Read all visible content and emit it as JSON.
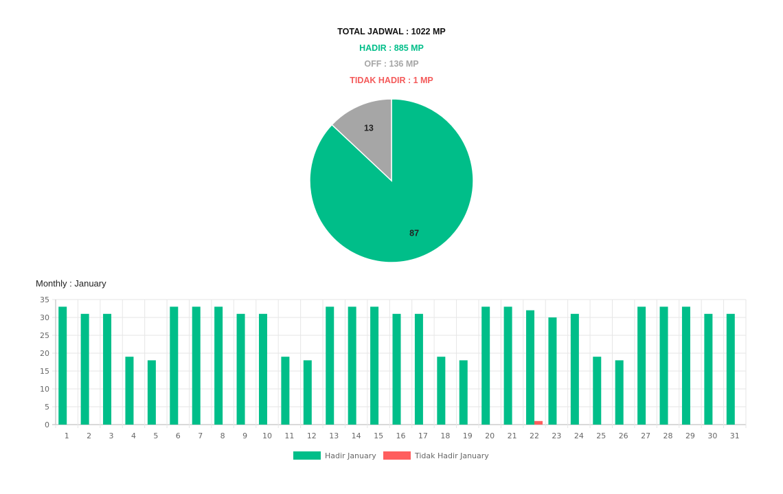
{
  "summary": {
    "total": "TOTAL JADWAL : 1022 MP",
    "hadir": "HADIR : 885 MP",
    "off": "OFF : 136 MP",
    "tidak_hadir": "TIDAK HADIR : 1 MP"
  },
  "monthly_title": "Monthly : January",
  "colors": {
    "hadir": "#00be89",
    "off": "#a6a6a6",
    "tidak_hadir": "#ff5e5e",
    "grid": "#e6e6e6"
  },
  "chart_data": [
    {
      "type": "pie",
      "slices": [
        {
          "label": "87",
          "value": 87,
          "color": "#00be89"
        },
        {
          "label": "13",
          "value": 13,
          "color": "#a6a6a6"
        }
      ]
    },
    {
      "type": "bar",
      "title": "Monthly : January",
      "categories": [
        "1",
        "2",
        "3",
        "4",
        "5",
        "6",
        "7",
        "8",
        "9",
        "10",
        "11",
        "12",
        "13",
        "14",
        "15",
        "16",
        "17",
        "18",
        "19",
        "20",
        "21",
        "22",
        "23",
        "24",
        "25",
        "26",
        "27",
        "28",
        "29",
        "30",
        "31"
      ],
      "series": [
        {
          "name": "Hadir January",
          "color": "#00be89",
          "values": [
            33,
            31,
            31,
            19,
            18,
            33,
            33,
            33,
            31,
            31,
            19,
            18,
            33,
            33,
            33,
            31,
            31,
            19,
            18,
            33,
            33,
            32,
            30,
            31,
            19,
            18,
            33,
            33,
            33,
            31,
            31
          ]
        },
        {
          "name": "Tidak Hadir January",
          "color": "#ff5e5e",
          "values": [
            0,
            0,
            0,
            0,
            0,
            0,
            0,
            0,
            0,
            0,
            0,
            0,
            0,
            0,
            0,
            0,
            0,
            0,
            0,
            0,
            0,
            1,
            0,
            0,
            0,
            0,
            0,
            0,
            0,
            0,
            0
          ]
        }
      ],
      "yticks": [
        "0",
        "5",
        "10",
        "15",
        "20",
        "25",
        "30",
        "35"
      ],
      "ylim": [
        0,
        35
      ],
      "grid": true,
      "legend": "bottom"
    }
  ]
}
